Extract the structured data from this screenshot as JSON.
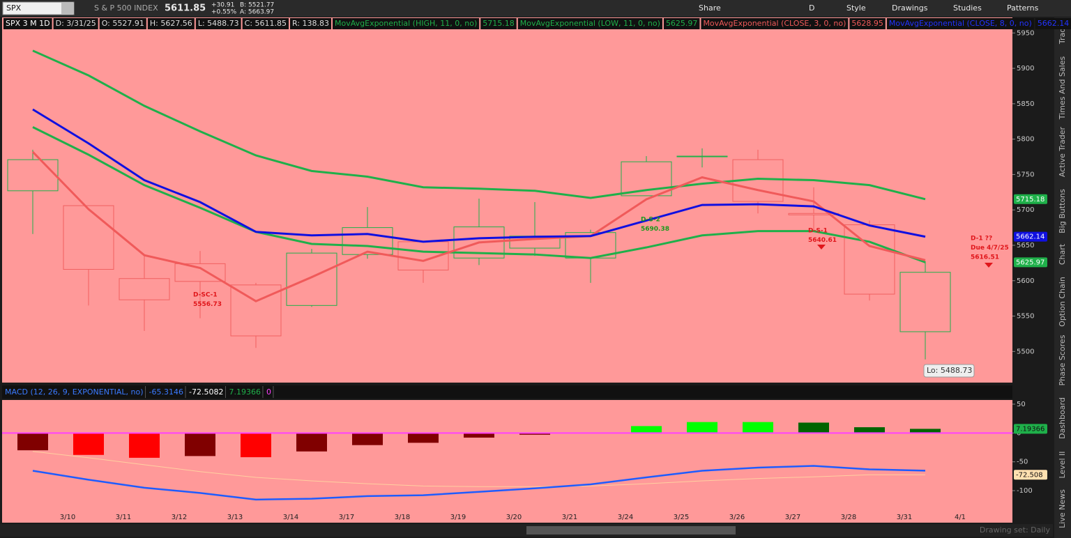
{
  "toolbar": {
    "symbol": "SPX",
    "description": "S & P 500 INDEX",
    "last": "5611.85",
    "change": "+30.91",
    "change_pct": "+0.55%",
    "bid": "B: 5521.77",
    "ask": "A: 5663.97",
    "buttons": [
      "Share",
      "D",
      "Style",
      "Drawings",
      "Studies",
      "Patterns"
    ]
  },
  "sidebar_tabs": [
    "Trade",
    "Times And Sales",
    "Active Trader",
    "Big Buttons",
    "Chart",
    "Option Chain",
    "Phase Scores",
    "Dashboard",
    "Level II",
    "Live News"
  ],
  "status": "Drawing set: Daily",
  "chart_data": [
    {
      "type": "candlestick",
      "header": [
        "SPX 3 M 1D",
        "D: 3/31/25",
        "O: 5527.91",
        "H: 5627.56",
        "L: 5488.73",
        "C: 5611.85",
        "R: 138.83"
      ],
      "categories": [
        null,
        "3/10",
        "3/11",
        "3/12",
        "3/13",
        "3/14",
        "3/17",
        "3/18",
        "3/19",
        "3/20",
        "3/21",
        "3/24",
        "3/25",
        "3/26",
        "3/27",
        "3/28",
        "3/31",
        "4/1"
      ],
      "open": [
        5727,
        5706,
        5603,
        5624,
        5594,
        5565,
        5637,
        5655,
        5632,
        5646,
        5632,
        5720,
        5775,
        5771,
        5695,
        5679,
        5527.91,
        null
      ],
      "high": [
        5785,
        5706,
        5636,
        5642,
        5597,
        5645,
        5704,
        5655,
        5716,
        5711,
        5672,
        5776,
        5787,
        5785,
        5732,
        5685,
        5627.56,
        null
      ],
      "low": [
        5666,
        5565,
        5529,
        5547,
        5505,
        5563,
        5631,
        5597,
        5622,
        5635,
        5597,
        5720,
        5760,
        5695,
        5670,
        5572,
        5488.73,
        null
      ],
      "close": [
        5771,
        5616,
        5573,
        5599,
        5522,
        5639,
        5675,
        5615,
        5676,
        5663,
        5668,
        5768,
        5776,
        5712,
        5693,
        5581,
        5611.85,
        null
      ],
      "up_color": "#1fb04a",
      "down_color": "#f06060",
      "series": [
        {
          "name": "MovAvgExponential (HIGH, 11, 0, no)",
          "color": "#1fb04a",
          "values": [
            5925,
            5890,
            5847,
            5811,
            5777,
            5755,
            5747,
            5732,
            5730,
            5727,
            5717,
            5728,
            5737,
            5744,
            5742,
            5735,
            5715.18,
            null
          ]
        },
        {
          "name": "MovAvgExponential (LOW, 11, 0, no)",
          "color": "#1fb04a",
          "values": [
            5817,
            5778,
            5735,
            5703,
            5669,
            5652,
            5649,
            5641,
            5639,
            5637,
            5632,
            5647,
            5664,
            5670,
            5670,
            5655,
            5625.97,
            null
          ]
        },
        {
          "name": "MovAvgExponential (CLOSE, 3, 0, no)",
          "color": "#f05a5a",
          "values": [
            5782,
            5701,
            5636,
            5618,
            5571,
            5605,
            5641,
            5628,
            5654,
            5659,
            5663,
            5715,
            5746,
            5728,
            5712,
            5649,
            5628.95,
            null
          ]
        },
        {
          "name": "MovAvgExponential (CLOSE, 8, 0, no)",
          "color": "#1010e0",
          "values": [
            5842,
            5794,
            5742,
            5711,
            5669,
            5664,
            5666,
            5655,
            5660,
            5662,
            5663,
            5685,
            5707,
            5708,
            5705,
            5678,
            5662.14,
            null
          ]
        }
      ],
      "ylim": [
        5457,
        5969
      ],
      "yticks": [
        5500,
        5550,
        5600,
        5650,
        5700,
        5750,
        5800,
        5850,
        5900,
        5950
      ],
      "annotations": [
        {
          "lines": [
            "D-SC-1",
            "5556.73"
          ],
          "color": "#e0161b"
        },
        {
          "lines": [
            "D-S-2",
            "5690.38"
          ],
          "color": "#1a9a1a"
        },
        {
          "lines": [
            "D-S-1",
            "5640.61"
          ],
          "color": "#e0161b"
        },
        {
          "lines": [
            "D-1 ??",
            "Due 4/7/25",
            "5616.51"
          ],
          "color": "#e0161b"
        },
        {
          "lines": [
            "Lo: 5488.73"
          ],
          "color": "#333333"
        }
      ]
    },
    {
      "type": "macd",
      "title": "MACD (12, 26, 9, EXPONENTIAL, no)",
      "value_line": {
        "color": "#1e5cff",
        "values": [
          -65.5,
          -81,
          -95,
          -104,
          -115.5,
          -114,
          -109.5,
          -108,
          -102,
          -96,
          -89,
          -77,
          -65.5,
          -60,
          -57,
          -63,
          -65.3146,
          null
        ]
      },
      "avg_line": {
        "color": "#ffd0a0",
        "values": [
          -32,
          -43,
          -55,
          -67,
          -77,
          -83,
          -88,
          -92,
          -93,
          -93,
          -92,
          -88,
          -83,
          -79,
          -76,
          -72.5,
          -72.5082,
          null
        ],
        "value_labels": [
          null,
          null,
          null,
          null,
          null,
          null,
          null,
          null,
          null,
          null,
          null,
          null,
          null,
          null,
          null,
          null,
          "-72.508",
          null
        ]
      },
      "diff": {
        "values": [
          -30,
          -38,
          -43,
          -40,
          -42,
          -32,
          -21,
          -17,
          -8,
          -3,
          0.5,
          12,
          19,
          19,
          18,
          10,
          7.19366,
          null
        ],
        "colors": [
          "#800000",
          "#ff0000",
          "#ff0000",
          "#800000",
          "#ff0000",
          "#800000",
          "#800000",
          "#800000",
          "#800000",
          "#800000",
          "#00ff00",
          "#00ff00",
          "#00ff00",
          "#00ff00",
          "#006400",
          "#006400",
          "#006400",
          null
        ]
      },
      "zero_line": 0,
      "zero_color": "#ff40ff",
      "ylim": [
        -135,
        56
      ],
      "yticks": [
        50,
        0,
        -50,
        -100
      ]
    }
  ]
}
